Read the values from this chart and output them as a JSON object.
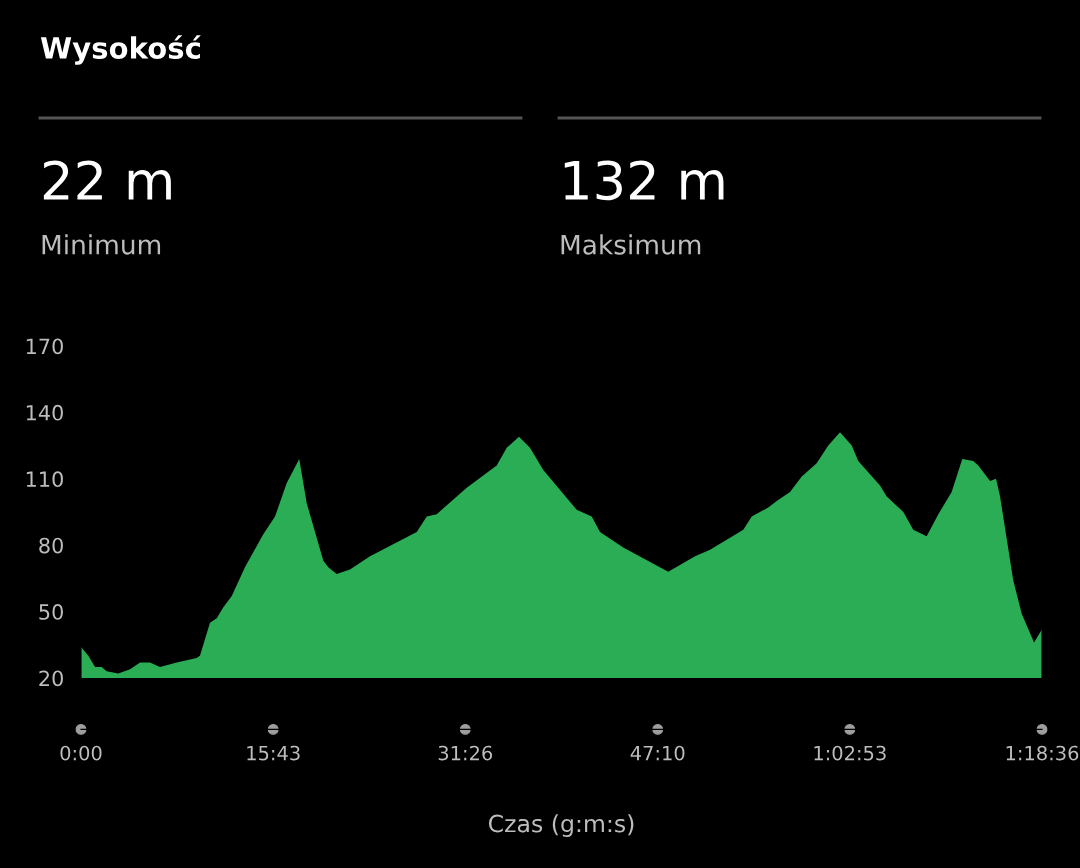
{
  "chart_data": {
    "type": "area",
    "title": "Wysokość",
    "xlabel": "Czas (g:m:s)",
    "annotations": [
      "22 m",
      "Minimum",
      "132 m",
      "Maksimum"
    ],
    "x": [
      0,
      0.6,
      1.15,
      1.69,
      2.1,
      3.05,
      4.01,
      4.83,
      5.64,
      6.46,
      7.83,
      9.46,
      9.73,
      10.55,
      11.1,
      11.64,
      12.33,
      13.41,
      14.91,
      15.87,
      16.82,
      17.85,
      18.46,
      19.82,
      20.23,
      20.91,
      22.0,
      23.64,
      27.46,
      28.28,
      29.09,
      31.55,
      34.0,
      34.82,
      35.82,
      36.72,
      37.81,
      39.32,
      40.54,
      41.77,
      42.45,
      44.35,
      48.03,
      50.22,
      51.45,
      54.17,
      54.86,
      56.21,
      56.9,
      57.99,
      58.95,
      60.17,
      61.12,
      62.08,
      63.04,
      63.57,
      65.35,
      65.9,
      67.26,
      68.07,
      69.17,
      70.12,
      71.21,
      72.08,
      72.98,
      73.39,
      74.35,
      74.84,
      75.17,
      76.25,
      76.94,
      77.95,
      78.6
    ],
    "series": [
      {
        "color": "#2aad55",
        "values": [
          34,
          30,
          25,
          25,
          23,
          22,
          24,
          27,
          27,
          25,
          27,
          29,
          30,
          45,
          47,
          52,
          57,
          70,
          85,
          93,
          108,
          119,
          99,
          73,
          70,
          67,
          69,
          75,
          86,
          93,
          94,
          106,
          116,
          124,
          129,
          124,
          114,
          104,
          96,
          93,
          86,
          79,
          68,
          75,
          78,
          87,
          93,
          97,
          100,
          104,
          111,
          117,
          125,
          131,
          125,
          118,
          107,
          102,
          95,
          87,
          84,
          94,
          104,
          119,
          118,
          116,
          109,
          110,
          102,
          64,
          49,
          36,
          42
        ]
      }
    ],
    "xlim": [
      0,
      78.6
    ],
    "xticks": [
      {
        "value": 0,
        "label": "0:00"
      },
      {
        "value": 15.72,
        "label": "15:43"
      },
      {
        "value": 31.43,
        "label": "31:26"
      },
      {
        "value": 47.17,
        "label": "47:10"
      },
      {
        "value": 62.88,
        "label": "1:02:53"
      },
      {
        "value": 78.6,
        "label": "1:18:36"
      }
    ],
    "ylim": [
      20,
      170
    ],
    "yticks": [
      20,
      50,
      80,
      110,
      140,
      170
    ]
  }
}
